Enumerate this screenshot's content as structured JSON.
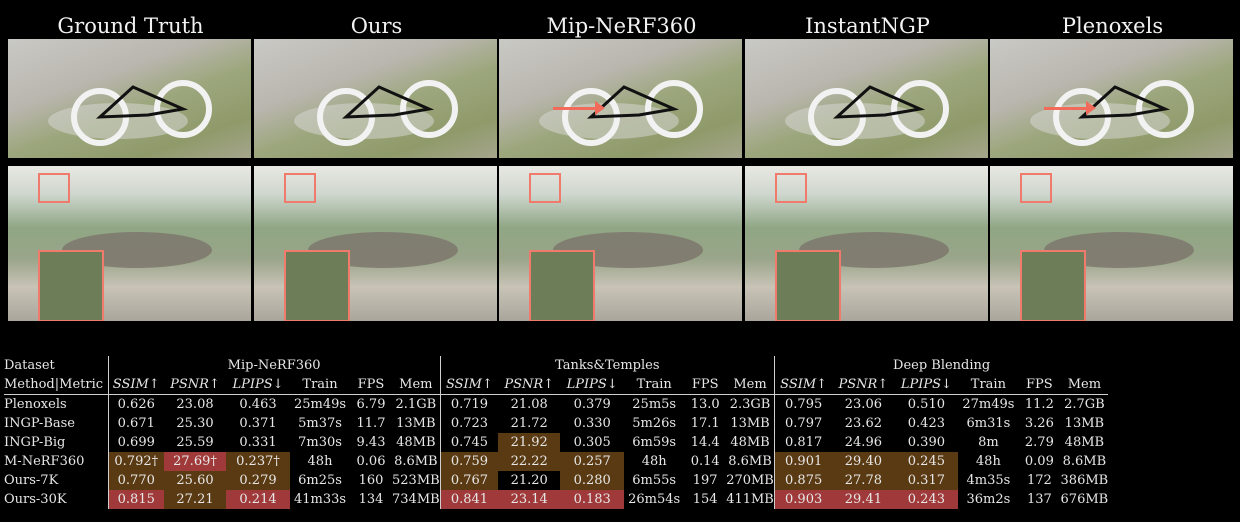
{
  "columns": [
    "Ground Truth",
    "Ours",
    "Mip-NeRF360",
    "InstantNGP",
    "Plenoxels"
  ],
  "images": {
    "row1_alt": "bicycle scene",
    "row2_alt": "garden scene"
  },
  "table": {
    "dataset_label": "Dataset",
    "method_label": "Method|Metric",
    "groups": [
      "Mip-NeRF360",
      "Tanks&Temples",
      "Deep Blending"
    ],
    "metric_headers": [
      "SSIM↑",
      "PSNR↑",
      "LPIPS↓",
      "Train",
      "FPS",
      "Mem"
    ],
    "rows": [
      {
        "method": "Plenoxels",
        "values": [
          "0.626",
          "23.08",
          "0.463",
          "25m49s",
          "6.79",
          "2.1GB",
          "0.719",
          "21.08",
          "0.379",
          "25m5s",
          "13.0",
          "2.3GB",
          "0.795",
          "23.06",
          "0.510",
          "27m49s",
          "11.2",
          "2.7GB"
        ]
      },
      {
        "method": "INGP-Base",
        "values": [
          "0.671",
          "25.30",
          "0.371",
          "5m37s",
          "11.7",
          "13MB",
          "0.723",
          "21.72",
          "0.330",
          "5m26s",
          "17.1",
          "13MB",
          "0.797",
          "23.62",
          "0.423",
          "6m31s",
          "3.26",
          "13MB"
        ]
      },
      {
        "method": "INGP-Big",
        "values": [
          "0.699",
          "25.59",
          "0.331",
          "7m30s",
          "9.43",
          "48MB",
          "0.745",
          "21.92",
          "0.305",
          "6m59s",
          "14.4",
          "48MB",
          "0.817",
          "24.96",
          "0.390",
          "8m",
          "2.79",
          "48MB"
        ]
      },
      {
        "method": "M-NeRF360",
        "values": [
          "0.792†",
          "27.69†",
          "0.237†",
          "48h",
          "0.06",
          "8.6MB",
          "0.759",
          "22.22",
          "0.257",
          "48h",
          "0.14",
          "8.6MB",
          "0.901",
          "29.40",
          "0.245",
          "48h",
          "0.09",
          "8.6MB"
        ]
      },
      {
        "method": "Ours-7K",
        "values": [
          "0.770",
          "25.60",
          "0.279",
          "6m25s",
          "160",
          "523MB",
          "0.767",
          "21.20",
          "0.280",
          "6m55s",
          "197",
          "270MB",
          "0.875",
          "27.78",
          "0.317",
          "4m35s",
          "172",
          "386MB"
        ]
      },
      {
        "method": "Ours-30K",
        "values": [
          "0.815",
          "27.21",
          "0.214",
          "41m33s",
          "134",
          "734MB",
          "0.841",
          "23.14",
          "0.183",
          "26m54s",
          "154",
          "411MB",
          "0.903",
          "29.41",
          "0.243",
          "36m2s",
          "137",
          "676MB"
        ]
      }
    ]
  },
  "colors": {
    "gold_highlight": "#5a3a12",
    "red_highlight": "#a03a3a",
    "arrow": "#f26b5a"
  }
}
